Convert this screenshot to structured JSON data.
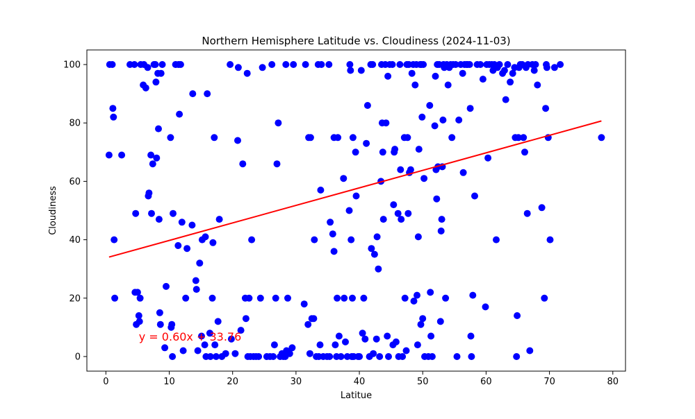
{
  "chart_data": {
    "type": "scatter",
    "title": "Northern Hemisphere Latitude vs. Cloudiness (2024-11-03)",
    "xlabel": "Latitue",
    "ylabel": "Cloudiness",
    "xlim": [
      -3,
      82
    ],
    "ylim": [
      -5,
      105
    ],
    "xticks": [
      0,
      10,
      20,
      30,
      40,
      50,
      60,
      70,
      80
    ],
    "yticks": [
      0,
      20,
      40,
      60,
      80,
      100
    ],
    "grid": false,
    "colors": {
      "points": "#0000ff",
      "regression": "#ff0000",
      "annotation": "#ff0000",
      "axes": "#000000"
    },
    "regression": {
      "slope": 0.6,
      "intercept": 33.76,
      "x_range": [
        0.5,
        78.2
      ]
    },
    "annotation": {
      "text": "y = 0.60x + 33.76",
      "x": 5.2,
      "y": 5.5
    },
    "series": [
      {
        "points": [
          [
            0.5,
            69
          ],
          [
            0.6,
            100
          ],
          [
            1,
            100
          ],
          [
            1.1,
            85
          ],
          [
            1.2,
            82
          ],
          [
            1.3,
            40
          ],
          [
            1.4,
            20
          ],
          [
            2.5,
            69
          ],
          [
            3.8,
            100
          ],
          [
            4.5,
            100
          ],
          [
            4.6,
            22
          ],
          [
            4.7,
            49
          ],
          [
            4.8,
            11
          ],
          [
            5,
            22
          ],
          [
            5.2,
            14
          ],
          [
            5.3,
            12
          ],
          [
            5.4,
            20
          ],
          [
            5.5,
            100
          ],
          [
            5.9,
            93
          ],
          [
            6,
            100
          ],
          [
            6.3,
            92
          ],
          [
            6.6,
            99
          ],
          [
            6.7,
            55
          ],
          [
            6.8,
            56
          ],
          [
            7.1,
            69
          ],
          [
            7.2,
            49
          ],
          [
            7.4,
            66
          ],
          [
            7.6,
            100
          ],
          [
            7.8,
            100
          ],
          [
            7.9,
            94
          ],
          [
            8,
            68
          ],
          [
            8.2,
            97
          ],
          [
            8.3,
            78
          ],
          [
            8.4,
            47
          ],
          [
            8.5,
            15
          ],
          [
            8.6,
            11
          ],
          [
            8.7,
            97
          ],
          [
            8.9,
            100
          ],
          [
            9.3,
            3
          ],
          [
            9.5,
            24
          ],
          [
            10.2,
            75
          ],
          [
            10.3,
            10
          ],
          [
            10.4,
            11
          ],
          [
            10.5,
            0
          ],
          [
            10.6,
            49
          ],
          [
            11,
            100
          ],
          [
            11.4,
            38
          ],
          [
            11.5,
            100
          ],
          [
            11.6,
            83
          ],
          [
            11.8,
            100
          ],
          [
            12,
            46
          ],
          [
            12.2,
            2
          ],
          [
            12.6,
            20
          ],
          [
            12.8,
            37
          ],
          [
            13.6,
            45
          ],
          [
            13.7,
            90
          ],
          [
            14.2,
            26
          ],
          [
            14.3,
            23
          ],
          [
            14.5,
            2
          ],
          [
            14.8,
            32
          ],
          [
            15.1,
            7
          ],
          [
            15.2,
            40
          ],
          [
            15.6,
            4
          ],
          [
            15.7,
            41
          ],
          [
            15.8,
            0
          ],
          [
            16,
            90
          ],
          [
            16.4,
            8
          ],
          [
            16.5,
            0
          ],
          [
            16.8,
            20
          ],
          [
            16.9,
            39
          ],
          [
            17.1,
            75
          ],
          [
            17.2,
            4
          ],
          [
            17.4,
            0
          ],
          [
            17.7,
            12
          ],
          [
            17.9,
            47
          ],
          [
            18.3,
            0
          ],
          [
            18.9,
            1
          ],
          [
            19.6,
            100
          ],
          [
            19.8,
            6
          ],
          [
            20.4,
            1
          ],
          [
            20.9,
            99
          ],
          [
            20.8,
            74
          ],
          [
            21.3,
            9
          ],
          [
            21.6,
            66
          ],
          [
            22,
            20
          ],
          [
            22.1,
            13
          ],
          [
            22.3,
            97
          ],
          [
            22.4,
            0
          ],
          [
            22.6,
            20
          ],
          [
            22.8,
            0
          ],
          [
            23,
            40
          ],
          [
            23.3,
            0
          ],
          [
            23.7,
            0
          ],
          [
            24.1,
            0
          ],
          [
            24.4,
            20
          ],
          [
            24.7,
            99
          ],
          [
            25.4,
            0
          ],
          [
            25.9,
            0
          ],
          [
            26.2,
            100
          ],
          [
            26.4,
            0
          ],
          [
            26.6,
            4
          ],
          [
            26.8,
            20
          ],
          [
            27,
            66
          ],
          [
            27.2,
            80
          ],
          [
            27.5,
            0
          ],
          [
            27.8,
            1
          ],
          [
            28,
            0
          ],
          [
            28.3,
            0
          ],
          [
            28.4,
            100
          ],
          [
            28.5,
            2
          ],
          [
            28.7,
            20
          ],
          [
            29,
            1
          ],
          [
            29.4,
            3
          ],
          [
            29.6,
            100
          ],
          [
            31.3,
            18
          ],
          [
            31.5,
            100
          ],
          [
            32,
            75
          ],
          [
            31.9,
            11
          ],
          [
            32.2,
            1
          ],
          [
            32.3,
            75
          ],
          [
            32.5,
            13
          ],
          [
            32.8,
            13
          ],
          [
            32.9,
            40
          ],
          [
            33.2,
            0
          ],
          [
            33.5,
            100
          ],
          [
            33.6,
            0
          ],
          [
            33.8,
            4
          ],
          [
            33.9,
            57
          ],
          [
            34,
            100
          ],
          [
            34.3,
            0
          ],
          [
            34.9,
            0
          ],
          [
            35.2,
            100
          ],
          [
            35.3,
            0
          ],
          [
            35.4,
            46
          ],
          [
            35.8,
            42
          ],
          [
            36,
            36
          ],
          [
            36,
            75
          ],
          [
            36.2,
            4
          ],
          [
            36.4,
            0
          ],
          [
            36.5,
            20
          ],
          [
            36.6,
            75
          ],
          [
            36.8,
            7
          ],
          [
            37.1,
            0
          ],
          [
            37.5,
            61
          ],
          [
            37.6,
            20
          ],
          [
            37.8,
            5
          ],
          [
            38.1,
            0
          ],
          [
            38.4,
            50
          ],
          [
            38.5,
            100
          ],
          [
            38.6,
            98
          ],
          [
            38.7,
            40
          ],
          [
            38.8,
            0
          ],
          [
            38.9,
            20
          ],
          [
            39,
            75
          ],
          [
            39.1,
            0
          ],
          [
            39.4,
            70
          ],
          [
            39.5,
            55
          ],
          [
            39.8,
            0
          ],
          [
            40,
            0
          ],
          [
            40.3,
            98
          ],
          [
            40.5,
            8
          ],
          [
            40.7,
            20
          ],
          [
            40.9,
            6
          ],
          [
            41.1,
            73
          ],
          [
            41.3,
            86
          ],
          [
            41.6,
            0
          ],
          [
            41.8,
            100
          ],
          [
            41.9,
            37
          ],
          [
            42.1,
            100
          ],
          [
            42.2,
            1
          ],
          [
            42.4,
            35
          ],
          [
            42.7,
            6
          ],
          [
            42.8,
            41
          ],
          [
            43,
            30
          ],
          [
            43.2,
            0
          ],
          [
            43.4,
            60
          ],
          [
            43.5,
            100
          ],
          [
            43.6,
            80
          ],
          [
            43.7,
            70
          ],
          [
            43.8,
            47
          ],
          [
            44.1,
            100
          ],
          [
            44.2,
            80
          ],
          [
            44.4,
            7
          ],
          [
            44.5,
            96
          ],
          [
            44.6,
            0
          ],
          [
            44.8,
            100
          ],
          [
            45.2,
            100
          ],
          [
            45.3,
            4
          ],
          [
            45.4,
            52
          ],
          [
            45.5,
            70
          ],
          [
            45.6,
            71
          ],
          [
            45.8,
            5
          ],
          [
            46.1,
            49
          ],
          [
            46.2,
            0
          ],
          [
            46.4,
            100
          ],
          [
            46.5,
            64
          ],
          [
            46.6,
            47
          ],
          [
            46.8,
            0
          ],
          [
            47.1,
            75
          ],
          [
            47.2,
            20
          ],
          [
            47.4,
            2
          ],
          [
            47.5,
            100
          ],
          [
            47.6,
            75
          ],
          [
            47.7,
            49
          ],
          [
            47.8,
            100
          ],
          [
            47.9,
            63
          ],
          [
            48.1,
            64
          ],
          [
            48.3,
            97
          ],
          [
            48.5,
            100
          ],
          [
            48.6,
            19
          ],
          [
            48.8,
            93
          ],
          [
            49,
            100
          ],
          [
            49.1,
            21
          ],
          [
            49.2,
            4
          ],
          [
            49.3,
            41
          ],
          [
            49.4,
            71
          ],
          [
            49.6,
            100
          ],
          [
            49.7,
            11
          ],
          [
            49.8,
            100
          ],
          [
            49.9,
            82
          ],
          [
            50,
            13
          ],
          [
            50.1,
            100
          ],
          [
            50.2,
            61
          ],
          [
            50.3,
            0
          ],
          [
            50.9,
            0
          ],
          [
            51.1,
            86
          ],
          [
            51.2,
            22
          ],
          [
            51.3,
            7
          ],
          [
            51.5,
            0
          ],
          [
            51.9,
            79
          ],
          [
            52,
            96
          ],
          [
            52.1,
            64
          ],
          [
            52.2,
            54
          ],
          [
            52.3,
            100
          ],
          [
            52.4,
            65
          ],
          [
            52.6,
            100
          ],
          [
            52.8,
            12
          ],
          [
            52.9,
            43
          ],
          [
            53,
            47
          ],
          [
            53.1,
            65
          ],
          [
            53.2,
            81
          ],
          [
            53.3,
            100
          ],
          [
            53.4,
            99
          ],
          [
            53.6,
            20
          ],
          [
            53.8,
            100
          ],
          [
            54,
            93
          ],
          [
            54.2,
            99
          ],
          [
            54.4,
            100
          ],
          [
            54.6,
            75
          ],
          [
            54.8,
            100
          ],
          [
            55.2,
            100
          ],
          [
            55.4,
            0
          ],
          [
            55.7,
            81
          ],
          [
            56,
            100
          ],
          [
            56.3,
            97
          ],
          [
            56.4,
            63
          ],
          [
            56.6,
            100
          ],
          [
            56.9,
            100
          ],
          [
            57.1,
            100
          ],
          [
            57.4,
            100
          ],
          [
            57.5,
            85
          ],
          [
            57.6,
            7
          ],
          [
            57.7,
            0
          ],
          [
            57.9,
            21
          ],
          [
            58.2,
            55
          ],
          [
            58.6,
            100
          ],
          [
            59.1,
            100
          ],
          [
            59.5,
            95
          ],
          [
            59.9,
            17
          ],
          [
            60.1,
            100
          ],
          [
            60.3,
            68
          ],
          [
            60.5,
            100
          ],
          [
            60.9,
            100
          ],
          [
            61.1,
            98
          ],
          [
            61.3,
            100
          ],
          [
            61.6,
            40
          ],
          [
            61.8,
            99
          ],
          [
            62.1,
            100
          ],
          [
            62.6,
            97
          ],
          [
            62.9,
            98
          ],
          [
            63.1,
            88
          ],
          [
            63.4,
            100
          ],
          [
            63.8,
            94
          ],
          [
            64.2,
            97
          ],
          [
            64.5,
            99
          ],
          [
            64.6,
            75
          ],
          [
            64.8,
            0
          ],
          [
            64.9,
            14
          ],
          [
            65.1,
            75
          ],
          [
            65.2,
            99
          ],
          [
            65.4,
            100
          ],
          [
            65.7,
            100
          ],
          [
            65.9,
            75
          ],
          [
            66.1,
            70
          ],
          [
            66.3,
            99
          ],
          [
            66.5,
            49
          ],
          [
            66.6,
            100
          ],
          [
            66.9,
            2
          ],
          [
            67.3,
            100
          ],
          [
            67.6,
            98
          ],
          [
            67.8,
            100
          ],
          [
            68.1,
            93
          ],
          [
            68.8,
            51
          ],
          [
            69.2,
            20
          ],
          [
            69.4,
            85
          ],
          [
            69.5,
            100
          ],
          [
            69.6,
            99
          ],
          [
            69.8,
            75
          ],
          [
            70.1,
            40
          ],
          [
            70.8,
            99
          ],
          [
            71.7,
            100
          ],
          [
            78.2,
            75
          ]
        ]
      }
    ]
  }
}
